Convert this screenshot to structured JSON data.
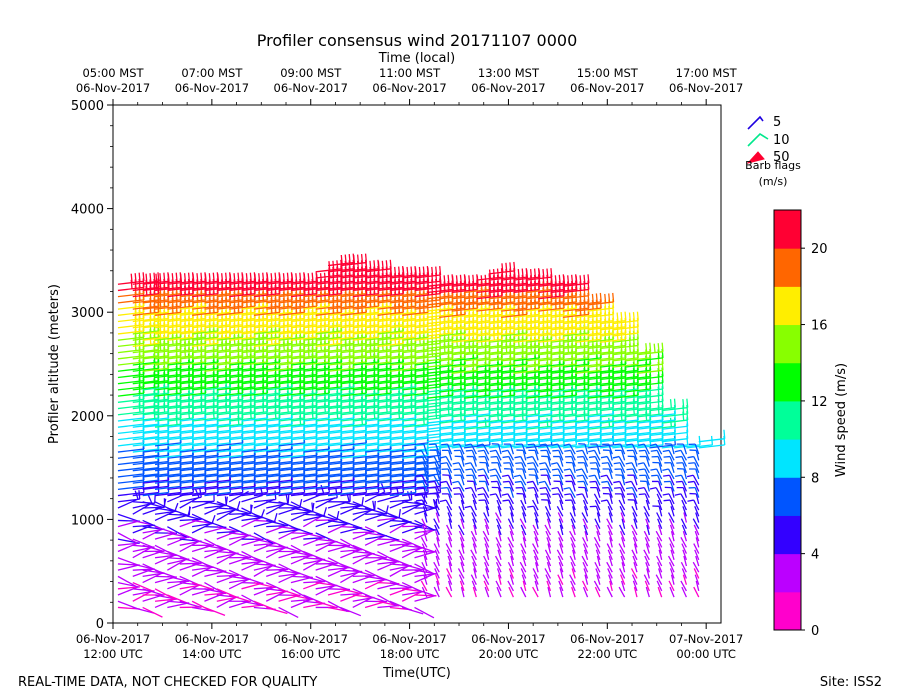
{
  "chart_data": {
    "type": "wind-barb-profile",
    "title": "Profiler consensus wind 20171107 0000",
    "top_axis_label": "Time (local)",
    "top_ticks": [
      {
        "time": "05:00 MST",
        "date": "06-Nov-2017"
      },
      {
        "time": "07:00 MST",
        "date": "06-Nov-2017"
      },
      {
        "time": "09:00 MST",
        "date": "06-Nov-2017"
      },
      {
        "time": "11:00 MST",
        "date": "06-Nov-2017"
      },
      {
        "time": "13:00 MST",
        "date": "06-Nov-2017"
      },
      {
        "time": "15:00 MST",
        "date": "06-Nov-2017"
      },
      {
        "time": "17:00 MST",
        "date": "06-Nov-2017"
      }
    ],
    "xlabel": "Time(UTC)",
    "x_ticks": [
      {
        "date": "06-Nov-2017",
        "time": "12:00 UTC"
      },
      {
        "date": "06-Nov-2017",
        "time": "14:00 UTC"
      },
      {
        "date": "06-Nov-2017",
        "time": "16:00 UTC"
      },
      {
        "date": "06-Nov-2017",
        "time": "18:00 UTC"
      },
      {
        "date": "06-Nov-2017",
        "time": "20:00 UTC"
      },
      {
        "date": "06-Nov-2017",
        "time": "22:00 UTC"
      },
      {
        "date": "07-Nov-2017",
        "time": "00:00 UTC"
      }
    ],
    "xlim_hours_utc": [
      12.0,
      0.3
    ],
    "ylabel": "Profiler altitude (meters)",
    "ylim": [
      0,
      5000
    ],
    "y_ticks": [
      0,
      1000,
      2000,
      3000,
      4000,
      5000
    ],
    "barb_legend": {
      "entries": [
        "5",
        "10",
        "50"
      ],
      "title_line1": "Barb flags",
      "title_line2": "(m/s)"
    },
    "colorbar": {
      "label": "Wind speed (m/s)",
      "range": [
        0,
        22
      ],
      "ticks": [
        0,
        4,
        8,
        12,
        16,
        20
      ],
      "colors": [
        "#ff00cc",
        "#bb00ff",
        "#3300ff",
        "#0055ff",
        "#00e5ff",
        "#00ff99",
        "#00ff00",
        "#88ff00",
        "#ffee00",
        "#ff6600",
        "#ff0033"
      ]
    },
    "profile_times_utc_hours": [
      12.1,
      12.4,
      12.6,
      12.85,
      13.1,
      13.35,
      13.6,
      13.85,
      14.1,
      14.35,
      14.6,
      14.85,
      15.1,
      15.35,
      15.6,
      15.85,
      16.1,
      16.35,
      16.6,
      16.85,
      17.1,
      17.35,
      17.6,
      17.85,
      18.1,
      18.35,
      18.6,
      18.85,
      19.1,
      19.35,
      19.6,
      19.85,
      20.1,
      20.35,
      20.6,
      20.85,
      21.1,
      21.35,
      21.6,
      21.85,
      22.1,
      22.35,
      22.6,
      22.85,
      23.1,
      23.35,
      23.6,
      23.85
    ],
    "max_altitude_m": [
      3300,
      3300,
      3300,
      3300,
      3300,
      3300,
      3300,
      3300,
      3300,
      3300,
      3300,
      3300,
      3300,
      3300,
      3300,
      3300,
      3400,
      3450,
      3450,
      3400,
      3400,
      3350,
      3350,
      3350,
      3350,
      3300,
      3300,
      3300,
      3300,
      3350,
      3400,
      3350,
      3350,
      3350,
      3300,
      3300,
      3300,
      3100,
      3100,
      2900,
      2900,
      2600,
      2600,
      2100,
      2100,
      1700,
      1700,
      1800
    ],
    "wind_speed_summary": [
      {
        "altitude_m": 250,
        "speed_ms": 2
      },
      {
        "altitude_m": 800,
        "speed_ms": 3.5
      },
      {
        "altitude_m": 1300,
        "speed_ms": 6
      },
      {
        "altitude_m": 1800,
        "speed_ms": 9
      },
      {
        "altitude_m": 2200,
        "speed_ms": 12
      },
      {
        "altitude_m": 2600,
        "speed_ms": 15
      },
      {
        "altitude_m": 3000,
        "speed_ms": 18
      },
      {
        "altitude_m": 3250,
        "speed_ms": 21
      }
    ]
  },
  "footer": {
    "left": "REAL-TIME DATA, NOT CHECKED FOR QUALITY",
    "right": "Site: ISS2"
  }
}
